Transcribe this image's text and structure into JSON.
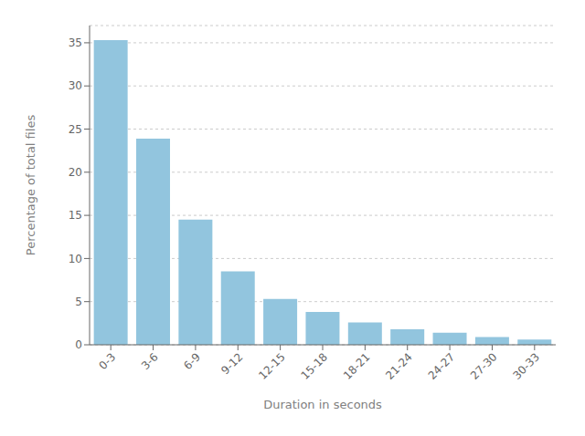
{
  "chart_data": {
    "type": "bar",
    "categories": [
      "0-3",
      "3-6",
      "6-9",
      "9-12",
      "12-15",
      "15-18",
      "18-21",
      "21-24",
      "24-27",
      "27-30",
      "30-33"
    ],
    "values": [
      35.3,
      23.9,
      14.5,
      8.5,
      5.3,
      3.8,
      2.6,
      1.8,
      1.4,
      0.9,
      0.6
    ],
    "color": "#92C5DE",
    "xlabel": "Duration in seconds",
    "ylabel": "Percentage of total files",
    "ylim": [
      0,
      37
    ],
    "yticks": [
      0,
      5,
      10,
      15,
      20,
      25,
      30,
      35
    ],
    "grid": true
  }
}
